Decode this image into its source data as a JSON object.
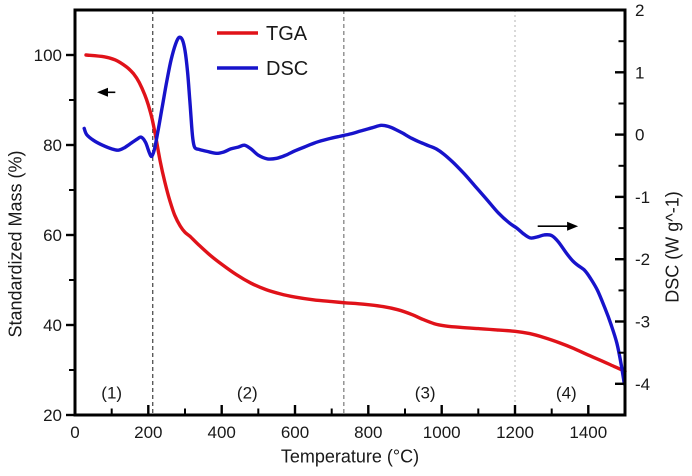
{
  "figure": {
    "background": "#ffffff"
  },
  "chart_data": {
    "type": "line",
    "title": "",
    "xlabel": "Temperature (°C)",
    "ylabel_left": "Standardized Mass (%)",
    "ylabel_right": "DSC (W g^-1)",
    "x_range": [
      0,
      1500
    ],
    "y_left_range": [
      20,
      110
    ],
    "y_right_range": [
      -4.5,
      2
    ],
    "x_major_ticks": [
      0,
      200,
      400,
      600,
      800,
      1000,
      1200,
      1400
    ],
    "x_minor_ticks": [
      100,
      300,
      500,
      700,
      900,
      1100,
      1300
    ],
    "y_left_major_ticks": [
      20,
      40,
      60,
      80,
      100
    ],
    "y_left_minor_ticks": [
      30,
      50,
      70,
      90
    ],
    "y_right_major_ticks": [
      2,
      1,
      0,
      -1,
      -2,
      -3,
      -4
    ],
    "y_right_minor_ticks": [
      1.5,
      0.5,
      -0.5,
      -1.5,
      -2.5,
      -3.5
    ],
    "grid": false,
    "legend": {
      "position": "top-left-inside",
      "entries": [
        {
          "label": "TGA"
        },
        {
          "label": "DSC"
        }
      ]
    },
    "series": [
      {
        "name": "TGA",
        "axis": "left",
        "color": "#e01219",
        "width": 3.4,
        "points": [
          [
            30,
            100
          ],
          [
            80,
            99.6
          ],
          [
            110,
            98.9
          ],
          [
            140,
            97.4
          ],
          [
            160,
            95.8
          ],
          [
            175,
            93.9
          ],
          [
            190,
            91.2
          ],
          [
            200,
            88.9
          ],
          [
            210,
            85.9
          ],
          [
            220,
            81.9
          ],
          [
            232,
            76.5
          ],
          [
            245,
            71.8
          ],
          [
            258,
            67.8
          ],
          [
            272,
            64.4
          ],
          [
            287,
            62.0
          ],
          [
            300,
            60.6
          ],
          [
            315,
            59.6
          ],
          [
            340,
            57.6
          ],
          [
            370,
            55.4
          ],
          [
            400,
            53.5
          ],
          [
            440,
            51.2
          ],
          [
            480,
            49.3
          ],
          [
            520,
            47.9
          ],
          [
            560,
            46.9
          ],
          [
            600,
            46.2
          ],
          [
            650,
            45.6
          ],
          [
            700,
            45.2
          ],
          [
            740,
            44.9
          ],
          [
            790,
            44.6
          ],
          [
            840,
            44.1
          ],
          [
            880,
            43.4
          ],
          [
            920,
            42.3
          ],
          [
            950,
            41.2
          ],
          [
            980,
            40.3
          ],
          [
            1010,
            39.8
          ],
          [
            1050,
            39.5
          ],
          [
            1100,
            39.2
          ],
          [
            1150,
            38.9
          ],
          [
            1200,
            38.6
          ],
          [
            1240,
            38.1
          ],
          [
            1280,
            37.2
          ],
          [
            1320,
            36.1
          ],
          [
            1360,
            34.8
          ],
          [
            1400,
            33.3
          ],
          [
            1440,
            31.9
          ],
          [
            1470,
            30.8
          ],
          [
            1500,
            29.7
          ]
        ]
      },
      {
        "name": "DSC",
        "axis": "right",
        "color": "#1713cb",
        "width": 3.4,
        "points": [
          [
            25,
            0.1
          ],
          [
            32,
            0.0
          ],
          [
            50,
            -0.09
          ],
          [
            75,
            -0.17
          ],
          [
            100,
            -0.23
          ],
          [
            118,
            -0.25
          ],
          [
            135,
            -0.21
          ],
          [
            155,
            -0.13
          ],
          [
            170,
            -0.07
          ],
          [
            180,
            -0.04
          ],
          [
            192,
            -0.12
          ],
          [
            202,
            -0.28
          ],
          [
            209,
            -0.35
          ],
          [
            216,
            -0.25
          ],
          [
            226,
            0.05
          ],
          [
            238,
            0.45
          ],
          [
            250,
            0.85
          ],
          [
            262,
            1.2
          ],
          [
            274,
            1.45
          ],
          [
            284,
            1.56
          ],
          [
            293,
            1.52
          ],
          [
            300,
            1.35
          ],
          [
            307,
            1.0
          ],
          [
            313,
            0.55
          ],
          [
            318,
            0.15
          ],
          [
            322,
            -0.1
          ],
          [
            327,
            -0.21
          ],
          [
            340,
            -0.24
          ],
          [
            360,
            -0.27
          ],
          [
            385,
            -0.3
          ],
          [
            405,
            -0.28
          ],
          [
            425,
            -0.23
          ],
          [
            445,
            -0.2
          ],
          [
            462,
            -0.17
          ],
          [
            480,
            -0.23
          ],
          [
            500,
            -0.33
          ],
          [
            525,
            -0.39
          ],
          [
            550,
            -0.38
          ],
          [
            575,
            -0.33
          ],
          [
            600,
            -0.26
          ],
          [
            625,
            -0.2
          ],
          [
            655,
            -0.13
          ],
          [
            690,
            -0.07
          ],
          [
            720,
            -0.03
          ],
          [
            750,
            0.01
          ],
          [
            780,
            0.06
          ],
          [
            810,
            0.11
          ],
          [
            835,
            0.15
          ],
          [
            855,
            0.13
          ],
          [
            875,
            0.08
          ],
          [
            895,
            0.02
          ],
          [
            915,
            -0.05
          ],
          [
            940,
            -0.12
          ],
          [
            965,
            -0.18
          ],
          [
            985,
            -0.23
          ],
          [
            1005,
            -0.31
          ],
          [
            1030,
            -0.44
          ],
          [
            1060,
            -0.62
          ],
          [
            1090,
            -0.82
          ],
          [
            1120,
            -1.02
          ],
          [
            1155,
            -1.26
          ],
          [
            1185,
            -1.42
          ],
          [
            1205,
            -1.5
          ],
          [
            1225,
            -1.6
          ],
          [
            1243,
            -1.66
          ],
          [
            1262,
            -1.64
          ],
          [
            1280,
            -1.61
          ],
          [
            1300,
            -1.62
          ],
          [
            1318,
            -1.72
          ],
          [
            1340,
            -1.9
          ],
          [
            1358,
            -2.03
          ],
          [
            1372,
            -2.1
          ],
          [
            1390,
            -2.18
          ],
          [
            1405,
            -2.3
          ],
          [
            1425,
            -2.5
          ],
          [
            1445,
            -2.78
          ],
          [
            1462,
            -3.05
          ],
          [
            1478,
            -3.35
          ],
          [
            1490,
            -3.7
          ],
          [
            1498,
            -4.0
          ]
        ]
      }
    ],
    "vlines": [
      {
        "x": 212,
        "color": "#5a5a5a",
        "dash": "4 3"
      },
      {
        "x": 733,
        "color": "#8c8c8c",
        "dash": "4 3"
      },
      {
        "x": 1200,
        "color": "#c9c9c9",
        "dash": "2 3"
      }
    ],
    "region_labels": [
      {
        "text": "(1)",
        "x": 100,
        "y": 25
      },
      {
        "text": "(2)",
        "x": 470,
        "y": 25
      },
      {
        "text": "(3)",
        "x": 955,
        "y": 25
      },
      {
        "text": "(4)",
        "x": 1340,
        "y": 25
      }
    ],
    "arrows": [
      {
        "name": "left-axis-arrow",
        "dir": "left",
        "axis": "left",
        "y": 91.7,
        "x_from": 110,
        "x_to": 60
      },
      {
        "name": "right-axis-arrow",
        "dir": "right",
        "axis": "right",
        "y": -1.47,
        "x_from": 1262,
        "x_to": 1372
      }
    ],
    "frame_color": "#000000"
  }
}
